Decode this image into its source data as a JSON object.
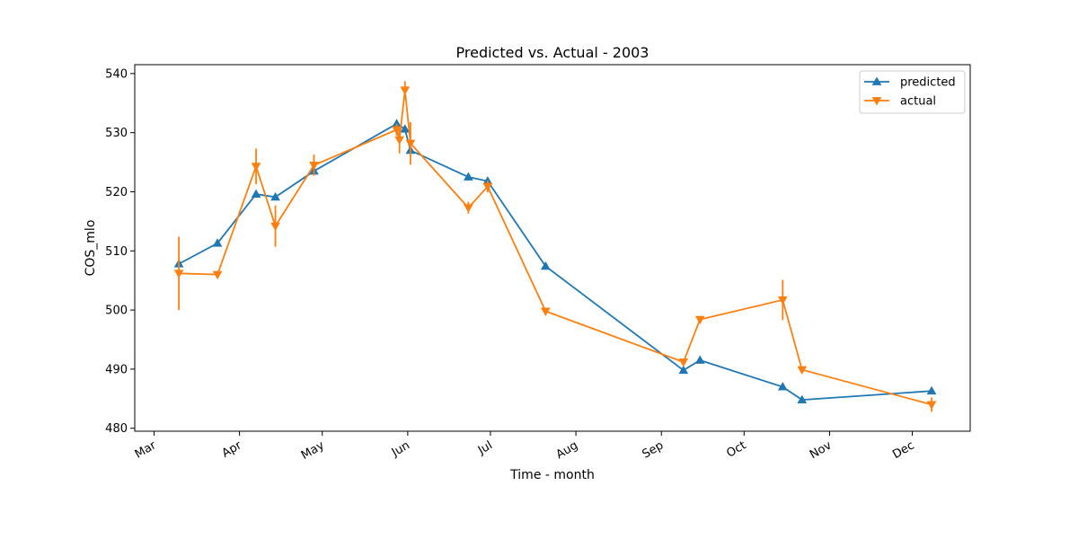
{
  "chart_data": {
    "type": "line",
    "title": "Predicted vs. Actual - 2003",
    "xlabel": "Time - month",
    "ylabel": "COS_mlo",
    "ylim": [
      479.5,
      541.5
    ],
    "xlim": [
      "2003-02-22",
      "2003-12-22"
    ],
    "x_ticks": [
      {
        "date": "2003-03-01",
        "label": "Mar"
      },
      {
        "date": "2003-04-01",
        "label": "Apr"
      },
      {
        "date": "2003-05-01",
        "label": "May"
      },
      {
        "date": "2003-06-01",
        "label": "Jun"
      },
      {
        "date": "2003-07-01",
        "label": "Jul"
      },
      {
        "date": "2003-08-01",
        "label": "Aug"
      },
      {
        "date": "2003-09-01",
        "label": "Sep"
      },
      {
        "date": "2003-10-01",
        "label": "Oct"
      },
      {
        "date": "2003-11-01",
        "label": "Nov"
      },
      {
        "date": "2003-12-01",
        "label": "Dec"
      }
    ],
    "y_ticks": [
      480,
      490,
      500,
      510,
      520,
      530,
      540
    ],
    "legend_position": "top-right",
    "grid": false,
    "series": [
      {
        "name": "predicted",
        "color": "#1f77b4",
        "marker": "triangle-up",
        "points": [
          {
            "x": "2003-03-10",
            "y": 507.8
          },
          {
            "x": "2003-03-24",
            "y": 511.3
          },
          {
            "x": "2003-04-07",
            "y": 519.6
          },
          {
            "x": "2003-04-14",
            "y": 519.1
          },
          {
            "x": "2003-04-28",
            "y": 523.5
          },
          {
            "x": "2003-05-28",
            "y": 531.5
          },
          {
            "x": "2003-05-31",
            "y": 530.6
          },
          {
            "x": "2003-06-02",
            "y": 527.0
          },
          {
            "x": "2003-06-23",
            "y": 522.5
          },
          {
            "x": "2003-06-30",
            "y": 521.8
          },
          {
            "x": "2003-07-21",
            "y": 507.4
          },
          {
            "x": "2003-09-09",
            "y": 489.8
          },
          {
            "x": "2003-09-15",
            "y": 491.5
          },
          {
            "x": "2003-10-15",
            "y": 487.0
          },
          {
            "x": "2003-10-22",
            "y": 484.8
          },
          {
            "x": "2003-12-08",
            "y": 486.3
          }
        ]
      },
      {
        "name": "actual",
        "color": "#ff7f0e",
        "marker": "triangle-down",
        "points": [
          {
            "x": "2003-03-10",
            "y": 506.2,
            "err": 6.2
          },
          {
            "x": "2003-03-24",
            "y": 506.0,
            "err": 0.5
          },
          {
            "x": "2003-04-07",
            "y": 524.3,
            "err": 3.0
          },
          {
            "x": "2003-04-14",
            "y": 514.2,
            "err": 3.5
          },
          {
            "x": "2003-04-28",
            "y": 524.5,
            "err": 1.8
          },
          {
            "x": "2003-05-28",
            "y": 530.5,
            "err": 1.0
          },
          {
            "x": "2003-05-29",
            "y": 528.8,
            "err": 2.3
          },
          {
            "x": "2003-05-31",
            "y": 537.2,
            "err": 1.5
          },
          {
            "x": "2003-06-02",
            "y": 528.2,
            "err": 3.6
          },
          {
            "x": "2003-06-23",
            "y": 517.3,
            "err": 1.0
          },
          {
            "x": "2003-06-30",
            "y": 520.9,
            "err": 1.0
          },
          {
            "x": "2003-07-21",
            "y": 499.8,
            "err": 0.5
          },
          {
            "x": "2003-09-09",
            "y": 491.2,
            "err": 0.5
          },
          {
            "x": "2003-09-15",
            "y": 498.4,
            "err": 0.5
          },
          {
            "x": "2003-10-15",
            "y": 501.7,
            "err": 3.4
          },
          {
            "x": "2003-10-22",
            "y": 489.9,
            "err": 0.5
          },
          {
            "x": "2003-12-08",
            "y": 484.0,
            "err": 1.2
          }
        ]
      }
    ]
  }
}
